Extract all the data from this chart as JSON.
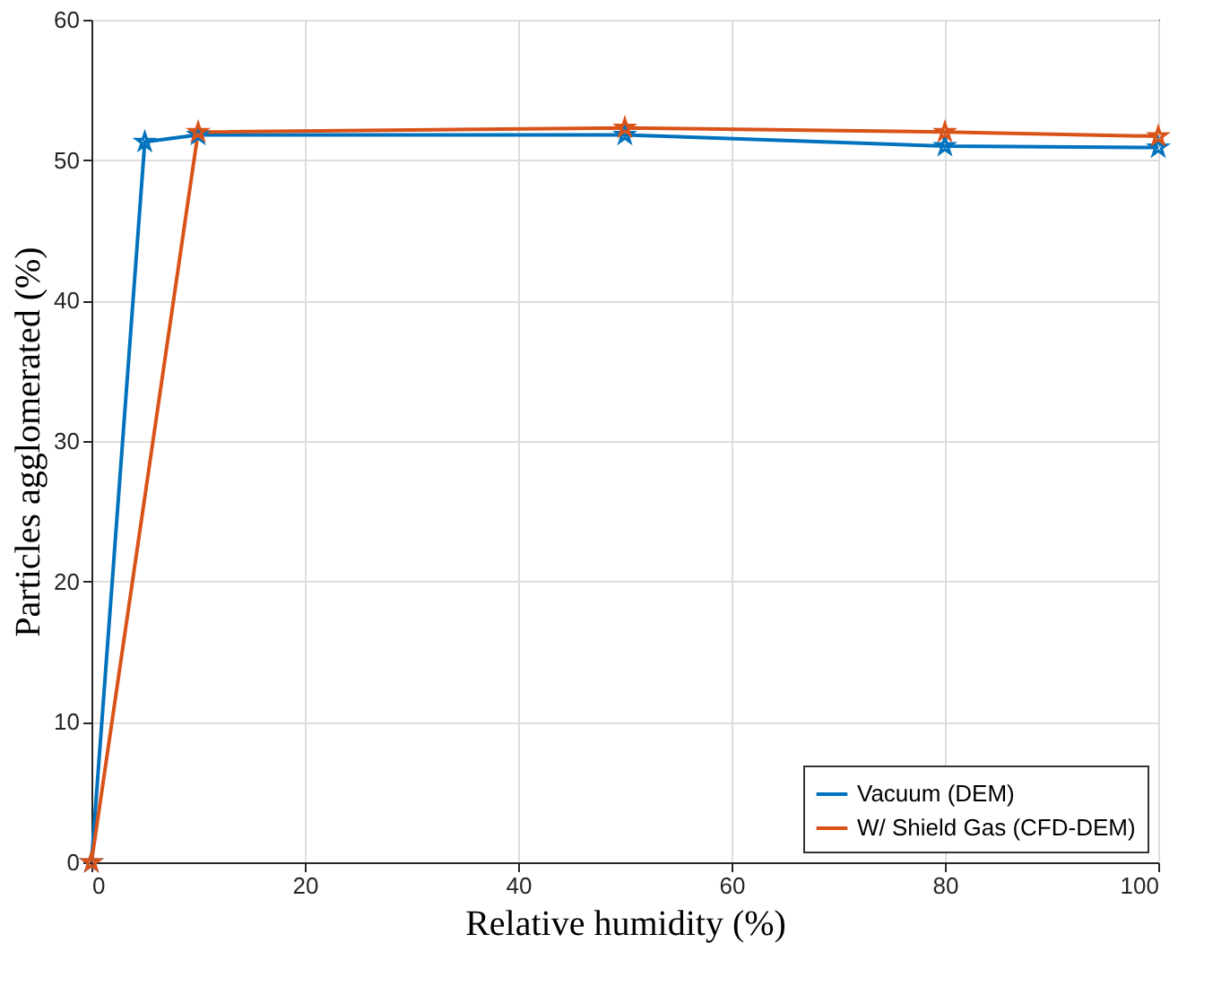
{
  "chart_data": {
    "type": "line",
    "xlabel": "Relative humidity (%)",
    "ylabel": "Particles agglomerated (%)",
    "xlim": [
      0,
      100
    ],
    "xticks": [
      0,
      20,
      40,
      60,
      80,
      100
    ],
    "ylim": [
      0,
      60
    ],
    "yticks": [
      0,
      10,
      20,
      30,
      40,
      50,
      60
    ],
    "grid": true,
    "legend": "bottom right",
    "marker": "star",
    "line_style": "solid",
    "series": [
      {
        "name": "Vacuum (DEM)",
        "color": "#0072bd",
        "x": [
          0,
          5,
          10,
          50,
          80,
          100
        ],
        "values": [
          0,
          51.3,
          51.8,
          51.8,
          51.0,
          50.9
        ]
      },
      {
        "name": "W/ Shield Gas (CFD-DEM)",
        "color": "#d95319",
        "x": [
          0,
          10,
          50,
          80,
          100
        ],
        "values": [
          0,
          52.0,
          52.3,
          52.0,
          51.7
        ]
      }
    ]
  }
}
